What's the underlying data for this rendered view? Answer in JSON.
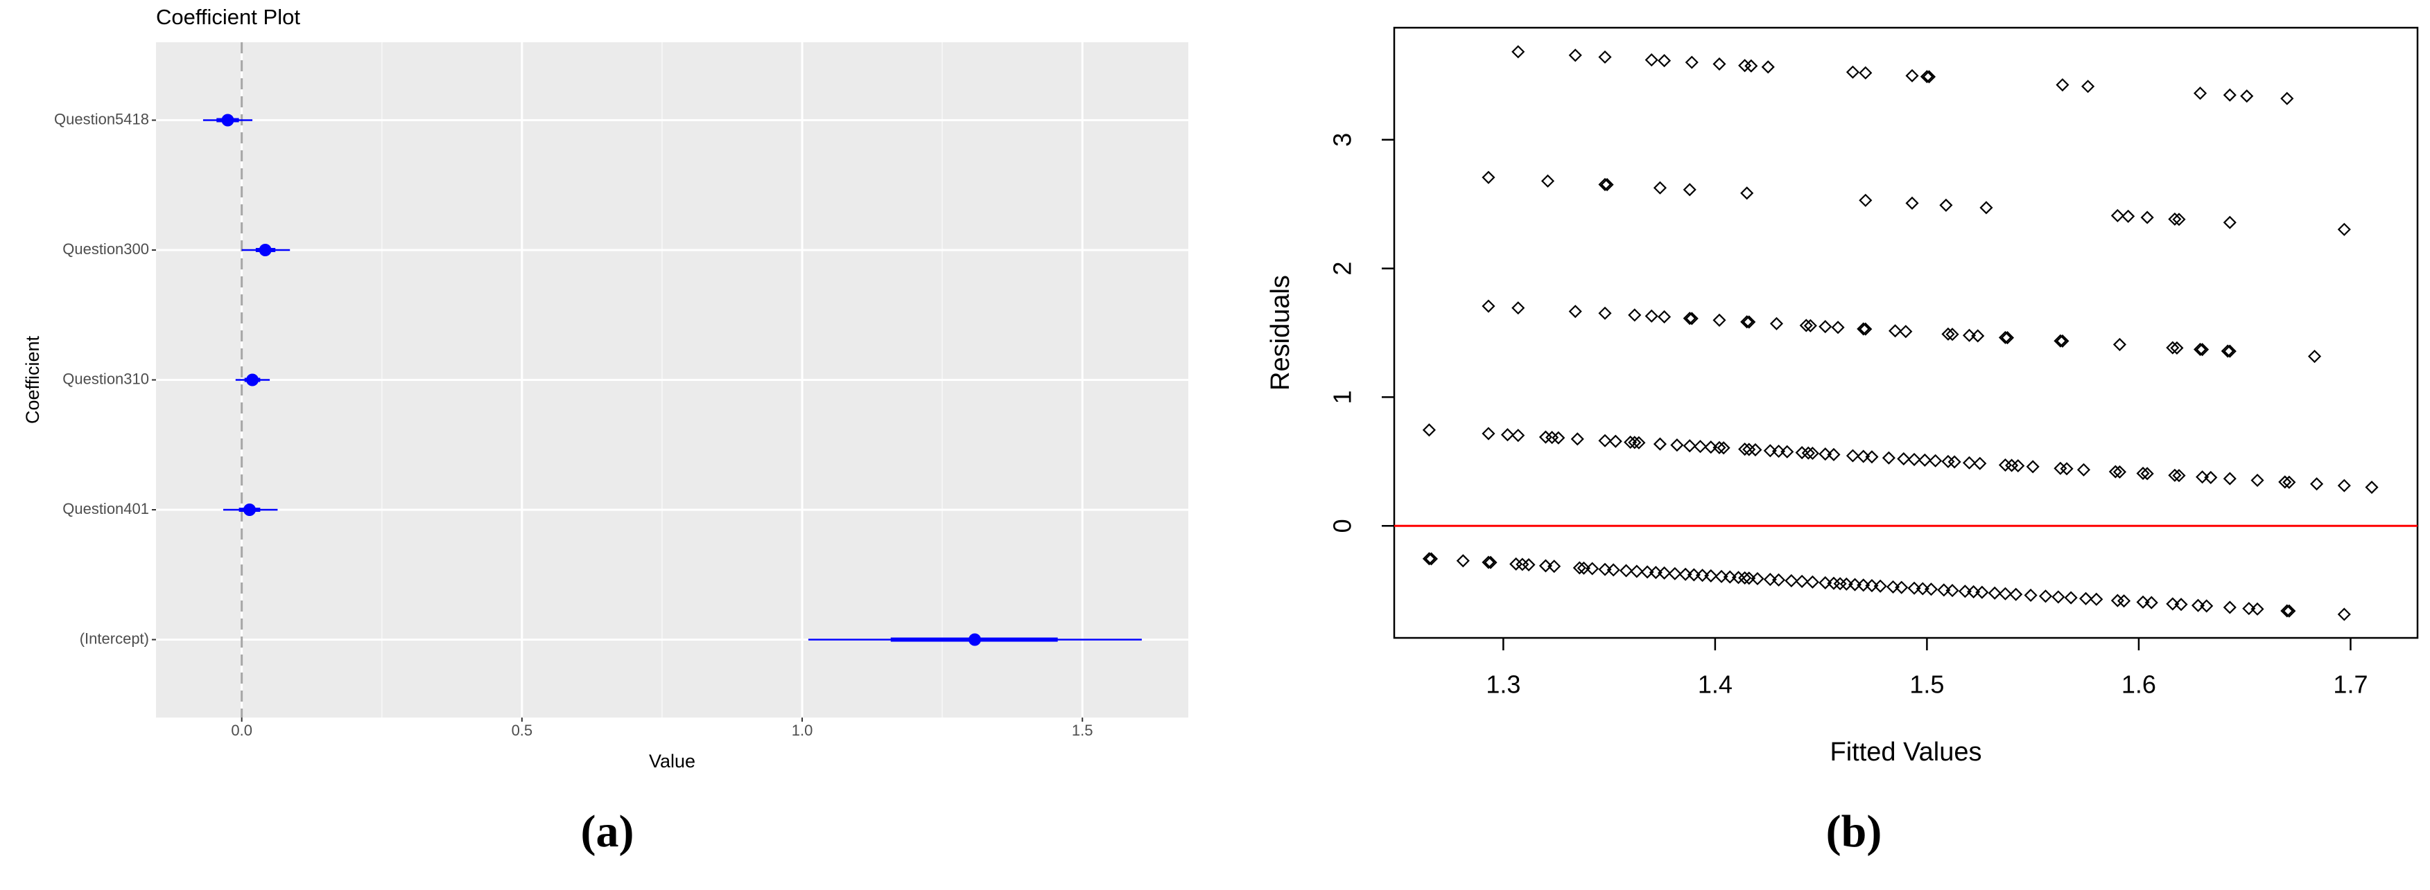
{
  "chart_data": [
    {
      "type": "coefplot",
      "title": "Coefficient Plot",
      "xlabel": "Value",
      "ylabel": "Coefficient",
      "caption": "(a)",
      "categories": [
        "Question5418",
        "Question300",
        "Question310",
        "Question401",
        "(Intercept)"
      ],
      "values": [
        -0.025,
        0.042,
        0.019,
        0.014,
        1.308
      ],
      "inner_low": [
        -0.045,
        0.025,
        0.005,
        -0.005,
        1.158
      ],
      "inner_high": [
        -0.005,
        0.06,
        0.033,
        0.033,
        1.456
      ],
      "outer_low": [
        -0.069,
        0,
        -0.011,
        -0.033,
        1.011
      ],
      "outer_high": [
        0.019,
        0.086,
        0.05,
        0.064,
        1.606
      ],
      "color": "#0000ff",
      "xlim": [
        -0.153,
        1.689
      ],
      "xticks": [
        {
          "value": 0,
          "label": "0.0"
        },
        0.5,
        {
          "value": 1,
          "label": "1.0"
        },
        1.5
      ],
      "x_minor_grid": [
        0.25,
        0.75,
        1.25
      ],
      "reference_line": 0
    },
    {
      "type": "scatter",
      "xlabel": "Fitted Values",
      "ylabel": "Residuals",
      "caption": "(b)",
      "x": [
        1.307,
        1.334,
        1.348,
        1.37,
        1.376,
        1.389,
        1.402,
        1.414,
        1.417,
        1.425,
        1.465,
        1.471,
        1.493,
        1.5,
        1.501,
        1.564,
        1.576,
        1.629,
        1.643,
        1.651,
        1.67,
        1.293,
        1.321,
        1.348,
        1.349,
        1.374,
        1.388,
        1.415,
        1.471,
        1.493,
        1.509,
        1.528,
        1.59,
        1.595,
        1.604,
        1.617,
        1.619,
        1.643,
        1.697,
        1.293,
        1.307,
        1.334,
        1.348,
        1.362,
        1.37,
        1.376,
        1.388,
        1.389,
        1.402,
        1.415,
        1.416,
        1.429,
        1.443,
        1.445,
        1.452,
        1.458,
        1.47,
        1.471,
        1.485,
        1.49,
        1.51,
        1.512,
        1.52,
        1.524,
        1.537,
        1.538,
        1.563,
        1.564,
        1.591,
        1.616,
        1.618,
        1.629,
        1.63,
        1.642,
        1.643,
        1.683,
        1.265,
        1.293,
        1.302,
        1.307,
        1.32,
        1.323,
        1.326,
        1.335,
        1.348,
        1.353,
        1.36,
        1.362,
        1.364,
        1.374,
        1.382,
        1.388,
        1.393,
        1.398,
        1.402,
        1.404,
        1.414,
        1.416,
        1.419,
        1.426,
        1.43,
        1.434,
        1.441,
        1.444,
        1.446,
        1.452,
        1.456,
        1.465,
        1.47,
        1.474,
        1.482,
        1.489,
        1.494,
        1.499,
        1.504,
        1.51,
        1.513,
        1.52,
        1.525,
        1.537,
        1.54,
        1.543,
        1.55,
        1.563,
        1.566,
        1.574,
        1.589,
        1.591,
        1.602,
        1.604,
        1.617,
        1.619,
        1.63,
        1.634,
        1.643,
        1.656,
        1.669,
        1.671,
        1.684,
        1.697,
        1.71,
        1.265,
        1.266,
        1.281,
        1.293,
        1.294,
        1.306,
        1.309,
        1.312,
        1.32,
        1.324,
        1.336,
        1.338,
        1.342,
        1.348,
        1.352,
        1.358,
        1.363,
        1.368,
        1.372,
        1.376,
        1.381,
        1.386,
        1.39,
        1.394,
        1.398,
        1.403,
        1.407,
        1.411,
        1.414,
        1.416,
        1.42,
        1.426,
        1.43,
        1.436,
        1.441,
        1.446,
        1.452,
        1.456,
        1.459,
        1.462,
        1.466,
        1.47,
        1.474,
        1.478,
        1.484,
        1.488,
        1.494,
        1.498,
        1.502,
        1.508,
        1.512,
        1.518,
        1.522,
        1.526,
        1.532,
        1.537,
        1.542,
        1.549,
        1.556,
        1.562,
        1.568,
        1.575,
        1.58,
        1.59,
        1.593,
        1.602,
        1.606,
        1.616,
        1.62,
        1.628,
        1.632,
        1.643,
        1.652,
        1.656,
        1.67,
        1.671,
        1.697
      ],
      "y": [
        3.683,
        3.656,
        3.642,
        3.62,
        3.614,
        3.601,
        3.588,
        3.576,
        3.573,
        3.565,
        3.525,
        3.519,
        3.497,
        3.49,
        3.489,
        3.426,
        3.414,
        3.361,
        3.347,
        3.339,
        3.32,
        2.707,
        2.679,
        2.652,
        2.651,
        2.626,
        2.612,
        2.585,
        2.529,
        2.507,
        2.491,
        2.472,
        2.41,
        2.405,
        2.396,
        2.383,
        2.381,
        2.357,
        2.303,
        1.707,
        1.693,
        1.666,
        1.652,
        1.638,
        1.63,
        1.624,
        1.612,
        1.611,
        1.598,
        1.585,
        1.584,
        1.571,
        1.557,
        1.555,
        1.548,
        1.542,
        1.53,
        1.529,
        1.515,
        1.51,
        1.49,
        1.488,
        1.48,
        1.476,
        1.463,
        1.462,
        1.437,
        1.436,
        1.409,
        1.384,
        1.382,
        1.371,
        1.37,
        1.358,
        1.357,
        1.317,
        0.745,
        0.717,
        0.708,
        0.703,
        0.69,
        0.687,
        0.684,
        0.675,
        0.662,
        0.657,
        0.65,
        0.648,
        0.646,
        0.636,
        0.628,
        0.622,
        0.617,
        0.612,
        0.608,
        0.606,
        0.596,
        0.594,
        0.591,
        0.584,
        0.58,
        0.576,
        0.569,
        0.566,
        0.564,
        0.558,
        0.554,
        0.545,
        0.54,
        0.536,
        0.528,
        0.521,
        0.516,
        0.511,
        0.506,
        0.5,
        0.497,
        0.49,
        0.485,
        0.473,
        0.47,
        0.467,
        0.46,
        0.447,
        0.444,
        0.436,
        0.421,
        0.419,
        0.408,
        0.406,
        0.393,
        0.391,
        0.38,
        0.376,
        0.367,
        0.354,
        0.341,
        0.339,
        0.326,
        0.313,
        0.3,
        -0.255,
        -0.256,
        -0.271,
        -0.283,
        -0.284,
        -0.296,
        -0.299,
        -0.302,
        -0.31,
        -0.314,
        -0.326,
        -0.328,
        -0.332,
        -0.338,
        -0.342,
        -0.348,
        -0.353,
        -0.358,
        -0.362,
        -0.366,
        -0.371,
        -0.376,
        -0.38,
        -0.384,
        -0.388,
        -0.393,
        -0.397,
        -0.401,
        -0.404,
        -0.406,
        -0.41,
        -0.416,
        -0.42,
        -0.426,
        -0.431,
        -0.436,
        -0.442,
        -0.446,
        -0.449,
        -0.452,
        -0.456,
        -0.46,
        -0.464,
        -0.468,
        -0.474,
        -0.478,
        -0.484,
        -0.488,
        -0.492,
        -0.498,
        -0.502,
        -0.508,
        -0.512,
        -0.516,
        -0.522,
        -0.527,
        -0.532,
        -0.539,
        -0.546,
        -0.552,
        -0.558,
        -0.565,
        -0.57,
        -0.58,
        -0.583,
        -0.592,
        -0.596,
        -0.606,
        -0.61,
        -0.618,
        -0.622,
        -0.633,
        -0.642,
        -0.646,
        -0.66,
        -0.661,
        -0.687
      ],
      "color": "#000000",
      "xlim": [
        1.2485,
        1.7316
      ],
      "ylim": [
        -0.87,
        3.87
      ],
      "xticks": [
        1.3,
        1.4,
        1.5,
        1.6,
        1.7
      ],
      "yticks": [
        0,
        1,
        2,
        3
      ],
      "reference_line": 0,
      "reference_color": "#ff0000"
    }
  ]
}
